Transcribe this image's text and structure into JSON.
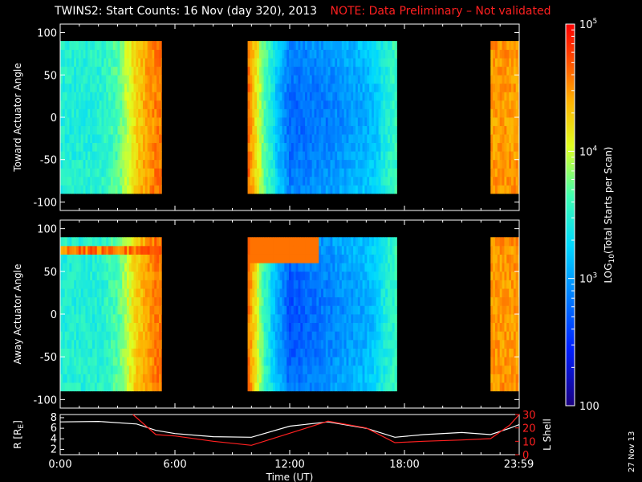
{
  "title": "TWINS2: Start Counts: 16 Nov (day 320), 2013",
  "note": "NOTE: Data Preliminary – Not validated",
  "colors": {
    "note": "#ff2020",
    "r_line": "#ffffff",
    "l_shell_line": "#ff2020",
    "axes": "#ffffff",
    "background": "#000000"
  },
  "colorbar": {
    "label_prefix": "LOG",
    "label_sub": "10",
    "label_suffix": "(Total Starts per Scan)",
    "tick_labels": [
      "100",
      "10",
      "10",
      "10"
    ],
    "tick_exponents": [
      "",
      "3",
      "4",
      "5"
    ],
    "range_log10": [
      2,
      5
    ],
    "colormap": "rainbow (blue-low, red-high)"
  },
  "chart_data": [
    {
      "type": "heatmap",
      "panel": "top",
      "ylabel": "Toward Actuator Angle",
      "ylim": [
        -110,
        110
      ],
      "yticks": [
        "100",
        "50",
        "0",
        "-50",
        "-100"
      ],
      "angle_range": [
        -90,
        90
      ],
      "x_unit": "hours UT",
      "data_segments_hours": [
        [
          0.0,
          5.3
        ],
        [
          9.8,
          17.6
        ],
        [
          22.5,
          24.0
        ]
      ],
      "approx_log10_by_hour": [
        {
          "t": 0.0,
          "v": 3.5
        },
        {
          "t": 2.0,
          "v": 3.5
        },
        {
          "t": 3.0,
          "v": 3.7
        },
        {
          "t": 4.0,
          "v": 4.3
        },
        {
          "t": 5.0,
          "v": 4.6
        },
        {
          "t": 9.8,
          "v": 4.7
        },
        {
          "t": 10.7,
          "v": 3.7
        },
        {
          "t": 12.0,
          "v": 2.9
        },
        {
          "t": 14.0,
          "v": 3.0
        },
        {
          "t": 16.0,
          "v": 3.2
        },
        {
          "t": 17.5,
          "v": 3.6
        },
        {
          "t": 22.5,
          "v": 4.5
        },
        {
          "t": 24.0,
          "v": 4.5
        }
      ]
    },
    {
      "type": "heatmap",
      "panel": "middle",
      "ylabel": "Away Actuator Angle",
      "ylim": [
        -110,
        110
      ],
      "yticks": [
        "100",
        "50",
        "0",
        "-50",
        "-100"
      ],
      "angle_range": [
        -90,
        90
      ],
      "x_unit": "hours UT",
      "data_segments_hours": [
        [
          0.0,
          5.3
        ],
        [
          9.8,
          17.6
        ],
        [
          22.5,
          24.0
        ]
      ],
      "approx_log10_by_hour": [
        {
          "t": 0.0,
          "v": 3.5
        },
        {
          "t": 2.0,
          "v": 3.5
        },
        {
          "t": 3.0,
          "v": 3.7
        },
        {
          "t": 4.0,
          "v": 4.3
        },
        {
          "t": 5.0,
          "v": 4.6
        },
        {
          "t": 9.8,
          "v": 4.7
        },
        {
          "t": 10.7,
          "v": 3.6
        },
        {
          "t": 12.0,
          "v": 2.8
        },
        {
          "t": 14.0,
          "v": 3.0
        },
        {
          "t": 16.0,
          "v": 3.2
        },
        {
          "t": 17.5,
          "v": 3.6
        },
        {
          "t": 22.5,
          "v": 4.5
        },
        {
          "t": 24.0,
          "v": 4.5
        }
      ],
      "high_band_angle_deg": 75,
      "high_band_log10": 4.7
    },
    {
      "type": "line",
      "panel": "bottom",
      "xlabel": "Time (UT)",
      "x_tick_labels": [
        "0:00",
        "6:00",
        "12:00",
        "18:00",
        "23:59"
      ],
      "x_tick_hours": [
        0,
        6,
        12,
        18,
        23.98
      ],
      "xlim": [
        0,
        24
      ],
      "y_left_label_main": "R [R",
      "y_left_label_sub": "E",
      "y_left_label_end": "]",
      "y_left_ticks": [
        "8",
        "6",
        "4",
        "2"
      ],
      "y_left_lim": [
        1,
        8.6
      ],
      "y_right_label": "L Shell",
      "y_right_ticks": [
        "30",
        "20",
        "10",
        "0"
      ],
      "y_right_lim": [
        0,
        30
      ],
      "series": [
        {
          "name": "R",
          "axis": "left",
          "x": [
            0,
            2,
            4,
            5,
            6,
            8,
            10,
            12,
            14,
            16,
            17.5,
            19,
            21,
            22.5,
            23.5,
            24
          ],
          "y": [
            7.2,
            7.3,
            6.8,
            5.6,
            5.0,
            4.4,
            4.3,
            6.4,
            7.2,
            6.0,
            4.3,
            4.8,
            5.2,
            4.8,
            6.0,
            6.7
          ]
        },
        {
          "name": "L Shell",
          "axis": "right",
          "x": [
            3.8,
            5.0,
            6.0,
            8.0,
            10.0,
            12.0,
            14.0,
            16.0,
            17.5,
            19.0,
            21.0,
            22.5,
            23.5,
            24.0
          ],
          "y": [
            30,
            15,
            14,
            10,
            7,
            16,
            25,
            20,
            9,
            10,
            11,
            12,
            22,
            32
          ]
        }
      ]
    }
  ],
  "date_stamp": "27 Nov 13"
}
